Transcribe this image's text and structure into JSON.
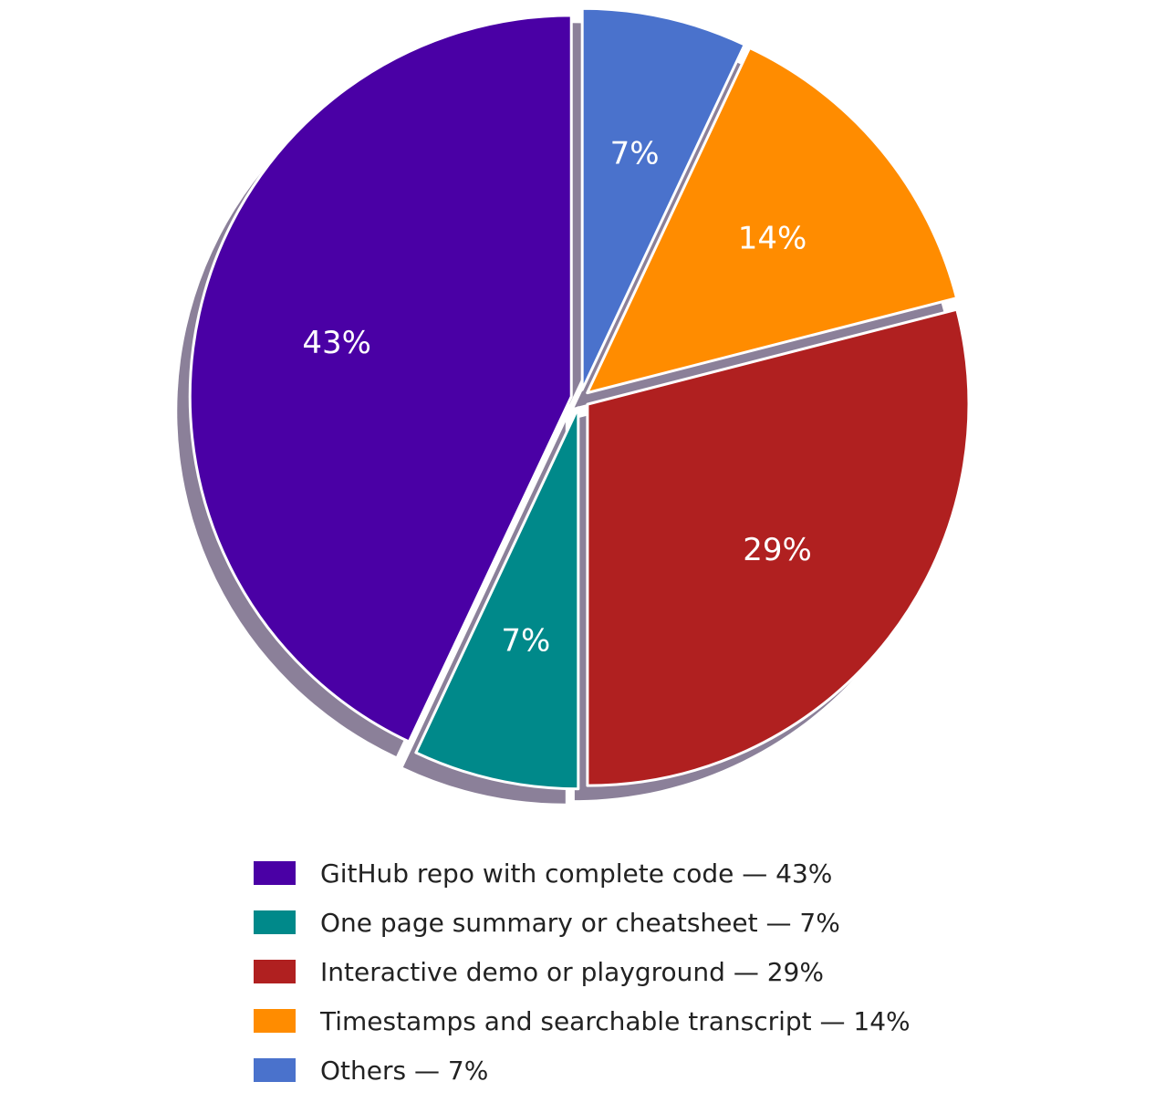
{
  "chart_data": {
    "type": "pie",
    "title": "",
    "start_angle_deg": 0,
    "direction": "clockwise",
    "legend_position": "bottom",
    "slices": [
      {
        "label": "Others",
        "value": 7,
        "value_label": "7%",
        "color": "#4a72cc",
        "legend_text": "Others — 7%"
      },
      {
        "label": "Timestamps and searchable transcript",
        "value": 14,
        "value_label": "14%",
        "color": "#ff8c00",
        "legend_text": "Timestamps and searchable transcript — 14%"
      },
      {
        "label": "Interactive demo or playground",
        "value": 29,
        "value_label": "29%",
        "color": "#b02020",
        "legend_text": "Interactive demo or playground — 29%"
      },
      {
        "label": "One page summary or cheatsheet",
        "value": 7,
        "value_label": "7%",
        "color": "#00898a",
        "legend_text": "One page summary or cheatsheet — 7%"
      },
      {
        "label": "GitHub repo with complete code",
        "value": 43,
        "value_label": "43%",
        "color": "#4a00a5",
        "legend_text": "GitHub repo with complete code — 43%"
      }
    ],
    "legend_order": [
      4,
      3,
      2,
      1,
      0
    ]
  }
}
